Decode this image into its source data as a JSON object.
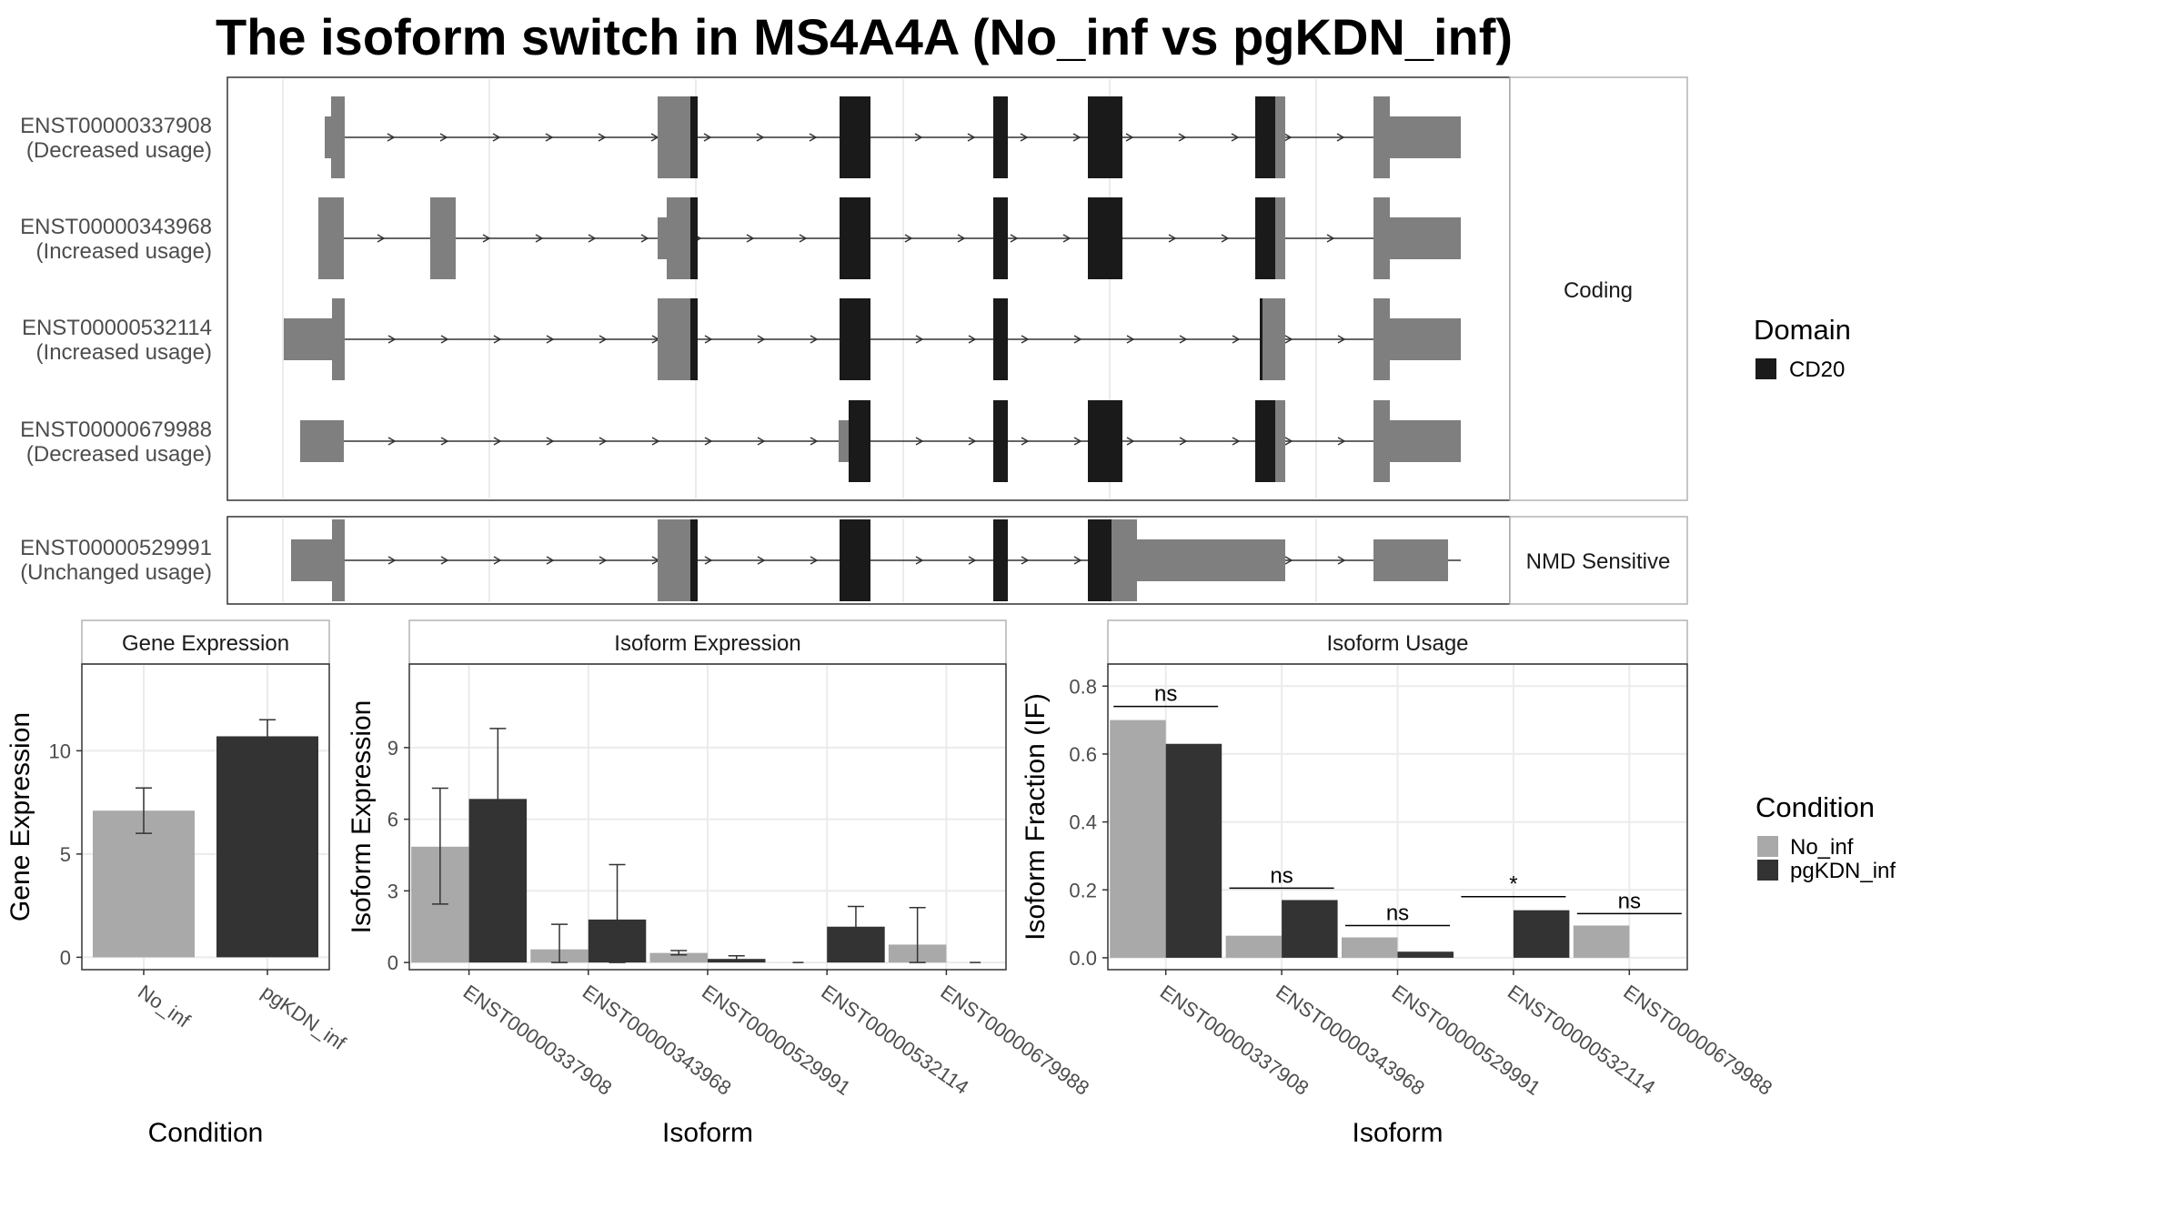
{
  "title": "The isoform switch in MS4A4A (No_inf vs pgKDN_inf)",
  "structure": {
    "coding_label": "Coding",
    "nmd_label": "NMD Sensitive",
    "transcripts": [
      {
        "id": "ENST00000337908",
        "usage": "(Decreased usage)"
      },
      {
        "id": "ENST00000343968",
        "usage": "(Increased usage)"
      },
      {
        "id": "ENST00000532114",
        "usage": "(Increased usage)"
      },
      {
        "id": "ENST00000679988",
        "usage": "(Decreased usage)"
      },
      {
        "id": "ENST00000529991",
        "usage": "(Unchanged usage)"
      }
    ]
  },
  "legend_domain": {
    "title": "Domain",
    "items": [
      {
        "label": "CD20",
        "color": "#1a1a1a"
      }
    ]
  },
  "legend_condition": {
    "title": "Condition",
    "items": [
      {
        "label": "No_inf",
        "color": "#a9a9a9"
      },
      {
        "label": "pgKDN_inf",
        "color": "#333333"
      }
    ]
  },
  "chart_data": [
    {
      "type": "bar",
      "title": "Gene Expression",
      "xlabel": "Condition",
      "ylabel": "Gene Expression",
      "categories": [
        "No_inf",
        "pgKDN_inf"
      ],
      "values": [
        7.1,
        10.7
      ],
      "error_low": [
        6.0,
        9.9
      ],
      "error_high": [
        8.2,
        11.5
      ],
      "ylim": [
        -0.6,
        14.2
      ],
      "yticks": [
        0,
        5,
        10
      ]
    },
    {
      "type": "bar",
      "title": "Isoform Expression",
      "xlabel": "Isoform",
      "ylabel": "Isoform Expression",
      "categories": [
        "ENST00000337908",
        "ENST00000343968",
        "ENST00000529991",
        "ENST00000532114",
        "ENST00000679988"
      ],
      "series": [
        {
          "name": "No_inf",
          "values": [
            4.85,
            0.55,
            0.4,
            0.0,
            0.75
          ],
          "error_low": [
            2.45,
            0.0,
            0.32,
            0.0,
            0.0
          ],
          "error_high": [
            7.3,
            1.6,
            0.5,
            0.0,
            2.3
          ]
        },
        {
          "name": "pgKDN_inf",
          "values": [
            6.85,
            1.8,
            0.15,
            1.5,
            0.0
          ],
          "error_low": [
            3.95,
            0.0,
            0.05,
            0.65,
            0.0
          ],
          "error_high": [
            9.8,
            4.1,
            0.28,
            2.35,
            0.0
          ]
        }
      ],
      "ylim": [
        -0.3,
        12.5
      ],
      "yticks": [
        0,
        3,
        6,
        9
      ]
    },
    {
      "type": "bar",
      "title": "Isoform Usage",
      "xlabel": "Isoform",
      "ylabel": "Isoform Fraction (IF)",
      "categories": [
        "ENST00000337908",
        "ENST00000343968",
        "ENST00000529991",
        "ENST00000532114",
        "ENST00000679988"
      ],
      "series": [
        {
          "name": "No_inf",
          "values": [
            0.7,
            0.065,
            0.06,
            0.0,
            0.095
          ]
        },
        {
          "name": "pgKDN_inf",
          "values": [
            0.63,
            0.17,
            0.018,
            0.14,
            0.0
          ]
        }
      ],
      "significance": [
        "ns",
        "ns",
        "ns",
        "*",
        "ns"
      ],
      "significance_y": [
        0.74,
        0.205,
        0.095,
        0.18,
        0.13
      ],
      "ylim": [
        -0.035,
        0.865
      ],
      "yticks": [
        0.0,
        0.2,
        0.4,
        0.6,
        0.8
      ]
    }
  ]
}
